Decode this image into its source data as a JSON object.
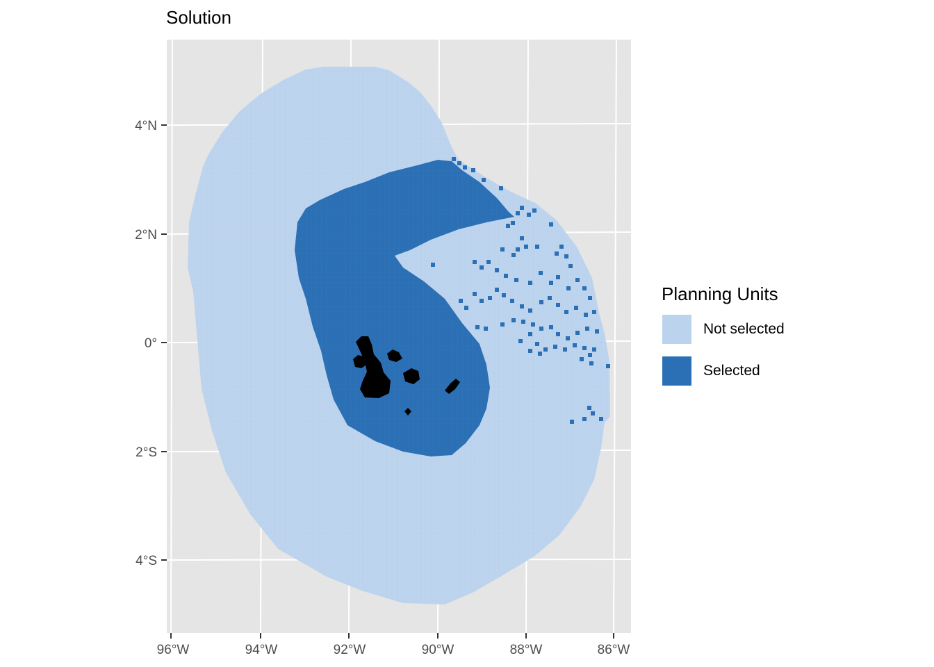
{
  "title": "Solution",
  "legend": {
    "title": "Planning Units",
    "items": [
      {
        "label": "Not selected",
        "color": "#bcd3ee"
      },
      {
        "label": "Selected",
        "color": "#2b6fb4"
      }
    ]
  },
  "colors": {
    "panel_background": "#e5e5e5",
    "gridline": "#ffffff",
    "not_selected": "#bcd3ee",
    "selected": "#2b6fb4",
    "land": "#000000"
  },
  "axes": {
    "x_ticks": [
      "96°W",
      "94°W",
      "92°W",
      "90°W",
      "88°W",
      "86°W"
    ],
    "y_ticks": [
      "4°N",
      "2°N",
      "0°",
      "2°S",
      "4°S"
    ]
  }
}
